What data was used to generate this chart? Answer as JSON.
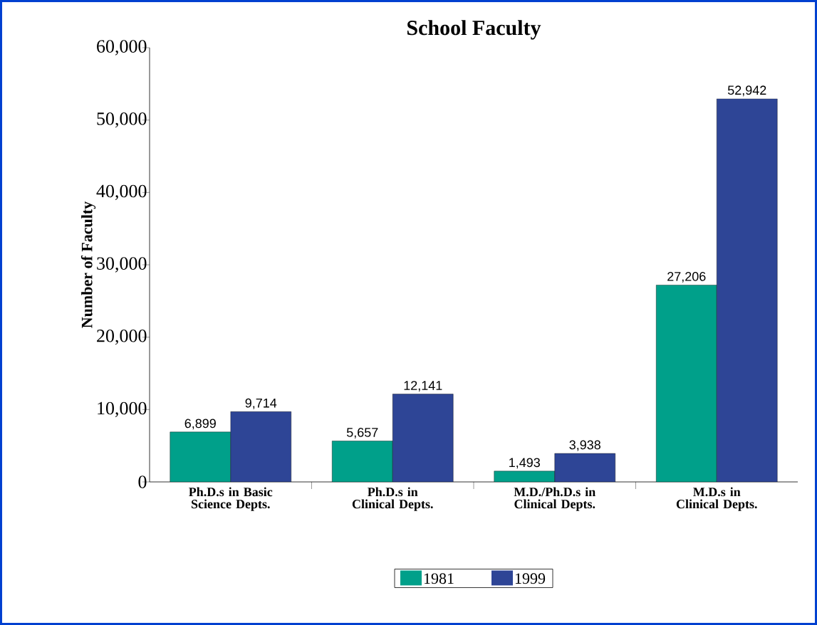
{
  "chart_data": {
    "type": "bar",
    "title": "School Faculty",
    "ylabel": "Number of Faculty",
    "categories": [
      "Ph.D.s in Basic Science Depts.",
      "Ph.D.s in Clinical Depts.",
      "M.D./Ph.D.s in Clinical Depts.",
      "M.D.s in Clinical Depts."
    ],
    "series": [
      {
        "name": "1981",
        "color": "#00a08a",
        "values": [
          6899,
          5657,
          1493,
          27206
        ],
        "value_labels": [
          "6,899",
          "5,657",
          "1,493",
          "27,206"
        ]
      },
      {
        "name": "1999",
        "color": "#2e4596",
        "values": [
          9714,
          12141,
          3938,
          52942
        ],
        "value_labels": [
          "9,714",
          "12,141",
          "3,938",
          "52,942"
        ]
      }
    ],
    "ylim": [
      0,
      60000
    ],
    "yticks": [
      {
        "value": 0,
        "label": "0"
      },
      {
        "value": 10000,
        "label": "10,000"
      },
      {
        "value": 20000,
        "label": "20,000"
      },
      {
        "value": 30000,
        "label": "30,000"
      },
      {
        "value": 40000,
        "label": "40,000"
      },
      {
        "value": 50000,
        "label": "50,000"
      },
      {
        "value": 60000,
        "label": "60,000"
      }
    ],
    "grid": false,
    "legend": "bottom"
  }
}
